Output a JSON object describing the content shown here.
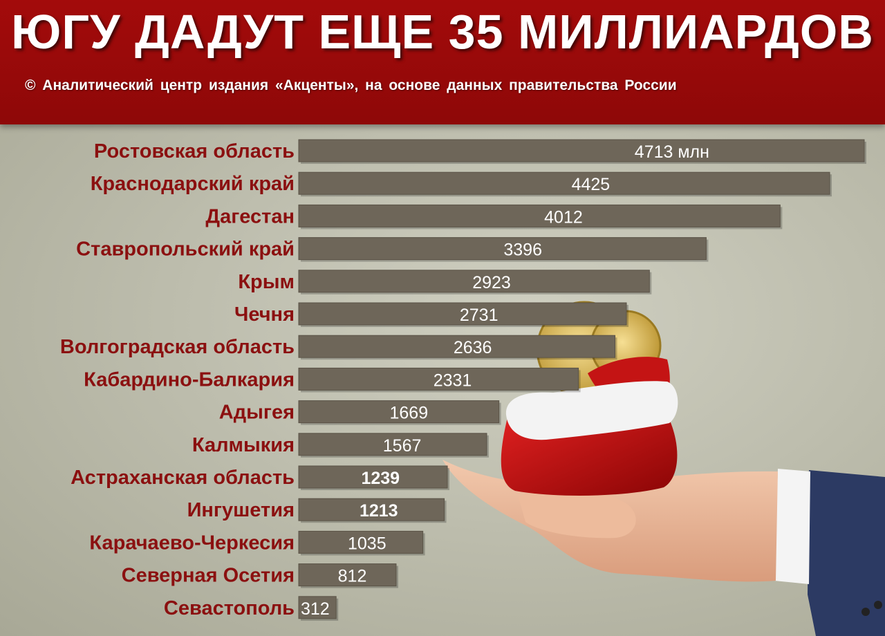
{
  "header": {
    "title": "ЮГУ  ДАДУТ  ЕЩЕ 35 МИЛЛИАРДОВ",
    "subtitle": "© Аналитический центр издания «Акценты», на основе данных правительства России"
  },
  "colors": {
    "header_bg": "#9a0a0a",
    "bar_fill": "#6e6659",
    "category_text": "#8b1010",
    "value_text": "#ffffff",
    "page_bg": "#b8b8a8"
  },
  "illustration": "hand-holding-red-gift-bag-with-gold-coins",
  "chart_data": {
    "type": "bar",
    "orientation": "horizontal",
    "unit_note": "млн",
    "categories": [
      "Ростовская область",
      "Краснодарский край",
      "Дагестан",
      "Ставропольский край",
      "Крым",
      "Чечня",
      "Волгоградская область",
      "Кабардино-Балкария",
      "Адыгея",
      "Калмыкия",
      "Астраханская область",
      "Ингушетия",
      "Карачаево-Черкесия",
      "Северная Осетия",
      "Севастополь"
    ],
    "values": [
      4713,
      4425,
      4012,
      3396,
      2923,
      2731,
      2636,
      2331,
      1669,
      1567,
      1239,
      1213,
      1035,
      812,
      312
    ],
    "value_labels": [
      "4713 млн",
      "4425",
      "4012",
      "3396",
      "2923",
      "2731",
      "2636",
      "2331",
      "1669",
      "1567",
      "1239",
      "1213",
      "1035",
      "812",
      "312"
    ],
    "bold_values": [
      1239,
      1213
    ]
  }
}
